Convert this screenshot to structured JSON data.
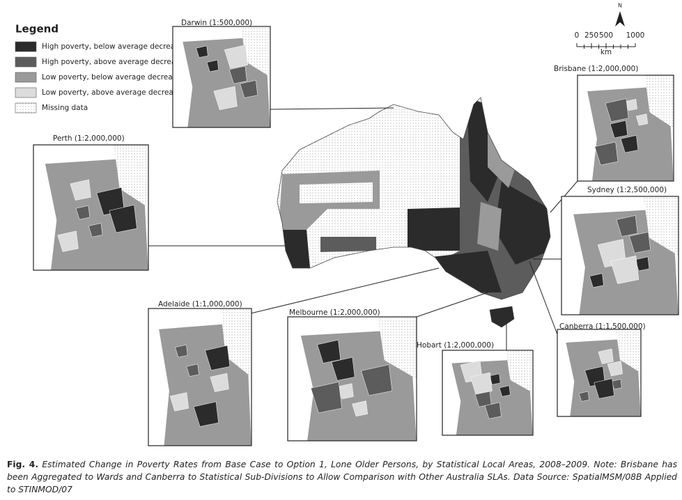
{
  "legend": {
    "title": "Legend",
    "items": [
      {
        "label": "High poverty, below average decrease",
        "color": "#2b2b2b"
      },
      {
        "label": "High poverty, above average decrease",
        "color": "#5c5c5c"
      },
      {
        "label": "Low poverty, below average decrease",
        "color": "#9a9a9a"
      },
      {
        "label": "Low poverty, above average decrease",
        "color": "#dcdcdc"
      },
      {
        "label": "Missing data",
        "color": "#ffffff"
      }
    ]
  },
  "north": "N",
  "scale_bar": {
    "ticks": [
      0,
      250,
      500,
      1000
    ],
    "unit": "km"
  },
  "insets": [
    {
      "label": "Darwin (1:500,000)"
    },
    {
      "label": "Perth (1:2,000,000)"
    },
    {
      "label": "Brisbane (1:2,000,000)"
    },
    {
      "label": "Sydney (1:2,500,000)"
    },
    {
      "label": "Adelaide (1:1,000,000)"
    },
    {
      "label": "Melbourne (1:2,000,000)"
    },
    {
      "label": "Hobart (1:2,000,000)"
    },
    {
      "label": "Canberra (1:1,500,000)"
    }
  ],
  "caption": {
    "label": "Fig. 4.",
    "text": "Estimated Change in Poverty Rates from Base Case to Option 1, Lone Older Persons, by Statistical Local Areas, 2008–2009. Note: Brisbane has been Aggregated to Wards and Canberra to Statistical Sub-Divisions to Allow Comparison with Other Australia SLAs. Data Source: SpatialMSM/08B Applied to STINMOD/07"
  }
}
